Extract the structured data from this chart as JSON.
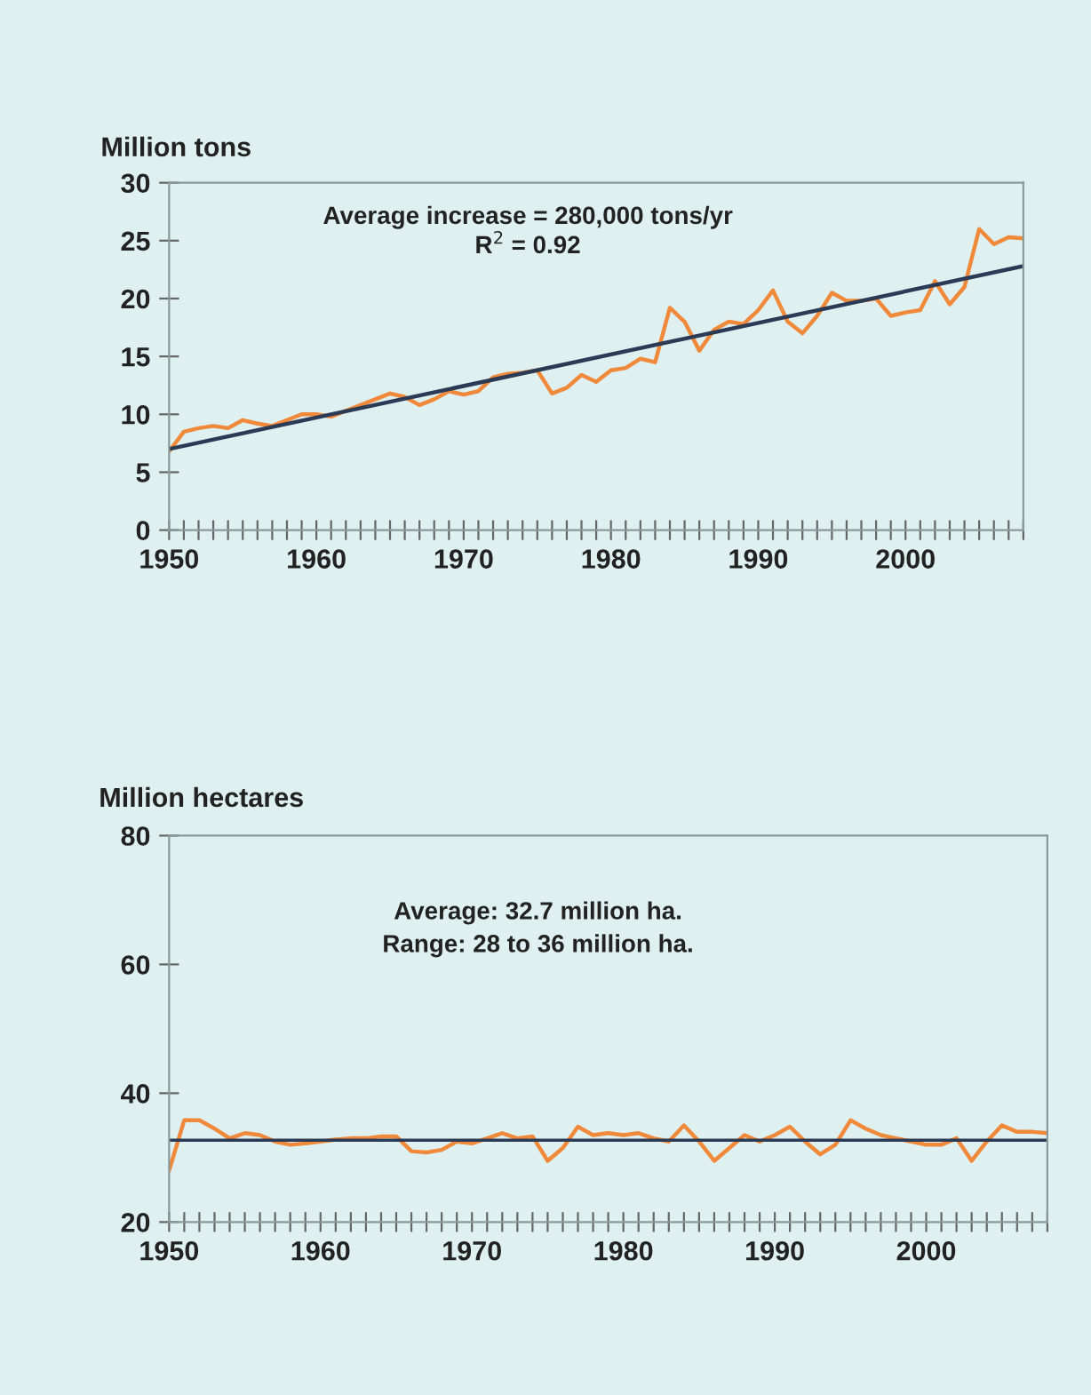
{
  "chart_data": [
    {
      "type": "line",
      "ylabel": "Million tons",
      "annotations": [
        "Average increase = 280,000 tons/yr",
        "R$^{2}$ = 0.92"
      ],
      "x": [
        1950,
        1951,
        1952,
        1953,
        1954,
        1955,
        1956,
        1957,
        1958,
        1959,
        1960,
        1961,
        1962,
        1963,
        1964,
        1965,
        1966,
        1967,
        1968,
        1969,
        1970,
        1971,
        1972,
        1973,
        1974,
        1975,
        1976,
        1977,
        1978,
        1979,
        1980,
        1981,
        1982,
        1983,
        1984,
        1985,
        1986,
        1987,
        1988,
        1989,
        1990,
        1991,
        1992,
        1993,
        1994,
        1995,
        1996,
        1997,
        1998,
        1999,
        2000,
        2001,
        2002,
        2003,
        2004,
        2005,
        2006,
        2007,
        2008
      ],
      "series": [
        {
          "color": "#f0893a",
          "values": [
            6.8,
            8.5,
            8.8,
            9.0,
            8.8,
            9.5,
            9.2,
            9.0,
            9.5,
            10.0,
            10.0,
            9.8,
            10.3,
            10.8,
            11.3,
            11.8,
            11.5,
            10.8,
            11.3,
            12.0,
            11.7,
            12.0,
            13.2,
            13.5,
            13.6,
            13.8,
            11.8,
            12.3,
            13.4,
            12.8,
            13.8,
            14.0,
            14.8,
            14.5,
            19.2,
            18.0,
            15.5,
            17.3,
            18.0,
            17.8,
            19.0,
            20.7,
            18.0,
            17.0,
            18.5,
            20.5,
            19.8,
            19.8,
            20.0,
            18.5,
            18.8,
            19.0,
            21.5,
            19.5,
            21.0,
            26.0,
            24.7,
            25.3,
            25.2
          ]
        },
        {
          "type": "line",
          "color": "#2b3a55",
          "x": [
            1950,
            2008
          ],
          "values": [
            7.0,
            22.8
          ]
        }
      ],
      "xlim": [
        1950,
        2008
      ],
      "ylim": [
        0,
        30
      ],
      "yticks": [
        0,
        5,
        10,
        15,
        20,
        25,
        30
      ],
      "xticks": [
        1950,
        {
          "value": 1951,
          "label": null
        },
        {
          "value": 1952,
          "label": null
        },
        {
          "value": 1953,
          "label": null
        },
        {
          "value": 1954,
          "label": null
        },
        {
          "value": 1955,
          "label": null
        },
        {
          "value": 1956,
          "label": null
        },
        {
          "value": 1957,
          "label": null
        },
        {
          "value": 1958,
          "label": null
        },
        {
          "value": 1959,
          "label": null
        },
        1960,
        {
          "value": 1961,
          "label": null
        },
        {
          "value": 1962,
          "label": null
        },
        {
          "value": 1963,
          "label": null
        },
        {
          "value": 1964,
          "label": null
        },
        {
          "value": 1965,
          "label": null
        },
        {
          "value": 1966,
          "label": null
        },
        {
          "value": 1967,
          "label": null
        },
        {
          "value": 1968,
          "label": null
        },
        {
          "value": 1969,
          "label": null
        },
        1970,
        {
          "value": 1971,
          "label": null
        },
        {
          "value": 1972,
          "label": null
        },
        {
          "value": 1973,
          "label": null
        },
        {
          "value": 1974,
          "label": null
        },
        {
          "value": 1975,
          "label": null
        },
        {
          "value": 1976,
          "label": null
        },
        {
          "value": 1977,
          "label": null
        },
        {
          "value": 1978,
          "label": null
        },
        {
          "value": 1979,
          "label": null
        },
        1980,
        {
          "value": 1981,
          "label": null
        },
        {
          "value": 1982,
          "label": null
        },
        {
          "value": 1983,
          "label": null
        },
        {
          "value": 1984,
          "label": null
        },
        {
          "value": 1985,
          "label": null
        },
        {
          "value": 1986,
          "label": null
        },
        {
          "value": 1987,
          "label": null
        },
        {
          "value": 1988,
          "label": null
        },
        {
          "value": 1989,
          "label": null
        },
        1990,
        {
          "value": 1991,
          "label": null
        },
        {
          "value": 1992,
          "label": null
        },
        {
          "value": 1993,
          "label": null
        },
        {
          "value": 1994,
          "label": null
        },
        {
          "value": 1995,
          "label": null
        },
        {
          "value": 1996,
          "label": null
        },
        {
          "value": 1997,
          "label": null
        },
        {
          "value": 1998,
          "label": null
        },
        {
          "value": 1999,
          "label": null
        },
        2000,
        {
          "value": 2001,
          "label": null
        },
        {
          "value": 2002,
          "label": null
        },
        {
          "value": 2003,
          "label": null
        },
        {
          "value": 2004,
          "label": null
        },
        {
          "value": 2005,
          "label": null
        },
        {
          "value": 2006,
          "label": null
        },
        {
          "value": 2007,
          "label": null
        },
        {
          "value": 2008,
          "label": null
        }
      ],
      "grid": false,
      "legend": false,
      "marker": "none",
      "line_style": "solid"
    },
    {
      "type": "line",
      "ylabel": "Million hectares",
      "annotations": [
        "Average: 32.7 million ha.",
        "Range: 28 to 36 million ha."
      ],
      "x": [
        1950,
        1951,
        1952,
        1953,
        1954,
        1955,
        1956,
        1957,
        1958,
        1959,
        1960,
        1961,
        1962,
        1963,
        1964,
        1965,
        1966,
        1967,
        1968,
        1969,
        1970,
        1971,
        1972,
        1973,
        1974,
        1975,
        1976,
        1977,
        1978,
        1979,
        1980,
        1981,
        1982,
        1983,
        1984,
        1985,
        1986,
        1987,
        1988,
        1989,
        1990,
        1991,
        1992,
        1993,
        1994,
        1995,
        1996,
        1997,
        1998,
        1999,
        2000,
        2001,
        2002,
        2003,
        2004,
        2005,
        2006,
        2007,
        2008
      ],
      "series": [
        {
          "color": "#f0893a",
          "values": [
            28.0,
            35.8,
            35.8,
            34.5,
            33.0,
            33.8,
            33.5,
            32.5,
            32.0,
            32.2,
            32.5,
            32.8,
            33.0,
            33.0,
            33.3,
            33.3,
            31.0,
            30.8,
            31.2,
            32.5,
            32.2,
            33.0,
            33.8,
            33.0,
            33.3,
            29.5,
            31.5,
            34.8,
            33.5,
            33.8,
            33.5,
            33.8,
            33.0,
            32.5,
            35.0,
            32.5,
            29.5,
            31.5,
            33.5,
            32.5,
            33.5,
            34.8,
            32.5,
            30.5,
            32.0,
            35.8,
            34.5,
            33.5,
            33.0,
            32.5,
            32.0,
            32.0,
            33.0,
            29.5,
            32.5,
            35.0,
            34.0,
            34.0,
            33.8
          ]
        }
      ],
      "ref_lines": [
        {
          "axis": "y",
          "value": 32.7,
          "color": "#2b3a55"
        }
      ],
      "xlim": [
        1950,
        2008
      ],
      "ylim": [
        20,
        80
      ],
      "yticks": [
        20,
        40,
        60,
        80
      ],
      "xticks": [
        1950,
        {
          "value": 1951,
          "label": null
        },
        {
          "value": 1952,
          "label": null
        },
        {
          "value": 1953,
          "label": null
        },
        {
          "value": 1954,
          "label": null
        },
        {
          "value": 1955,
          "label": null
        },
        {
          "value": 1956,
          "label": null
        },
        {
          "value": 1957,
          "label": null
        },
        {
          "value": 1958,
          "label": null
        },
        {
          "value": 1959,
          "label": null
        },
        1960,
        {
          "value": 1961,
          "label": null
        },
        {
          "value": 1962,
          "label": null
        },
        {
          "value": 1963,
          "label": null
        },
        {
          "value": 1964,
          "label": null
        },
        {
          "value": 1965,
          "label": null
        },
        {
          "value": 1966,
          "label": null
        },
        {
          "value": 1967,
          "label": null
        },
        {
          "value": 1968,
          "label": null
        },
        {
          "value": 1969,
          "label": null
        },
        1970,
        {
          "value": 1971,
          "label": null
        },
        {
          "value": 1972,
          "label": null
        },
        {
          "value": 1973,
          "label": null
        },
        {
          "value": 1974,
          "label": null
        },
        {
          "value": 1975,
          "label": null
        },
        {
          "value": 1976,
          "label": null
        },
        {
          "value": 1977,
          "label": null
        },
        {
          "value": 1978,
          "label": null
        },
        {
          "value": 1979,
          "label": null
        },
        1980,
        {
          "value": 1981,
          "label": null
        },
        {
          "value": 1982,
          "label": null
        },
        {
          "value": 1983,
          "label": null
        },
        {
          "value": 1984,
          "label": null
        },
        {
          "value": 1985,
          "label": null
        },
        {
          "value": 1986,
          "label": null
        },
        {
          "value": 1987,
          "label": null
        },
        {
          "value": 1988,
          "label": null
        },
        {
          "value": 1989,
          "label": null
        },
        1990,
        {
          "value": 1991,
          "label": null
        },
        {
          "value": 1992,
          "label": null
        },
        {
          "value": 1993,
          "label": null
        },
        {
          "value": 1994,
          "label": null
        },
        {
          "value": 1995,
          "label": null
        },
        {
          "value": 1996,
          "label": null
        },
        {
          "value": 1997,
          "label": null
        },
        {
          "value": 1998,
          "label": null
        },
        {
          "value": 1999,
          "label": null
        },
        2000,
        {
          "value": 2001,
          "label": null
        },
        {
          "value": 2002,
          "label": null
        },
        {
          "value": 2003,
          "label": null
        },
        {
          "value": 2004,
          "label": null
        },
        {
          "value": 2005,
          "label": null
        },
        {
          "value": 2006,
          "label": null
        },
        {
          "value": 2007,
          "label": null
        },
        {
          "value": 2008,
          "label": null
        }
      ],
      "grid": false,
      "legend": false,
      "marker": "none",
      "line_style": "solid"
    }
  ]
}
